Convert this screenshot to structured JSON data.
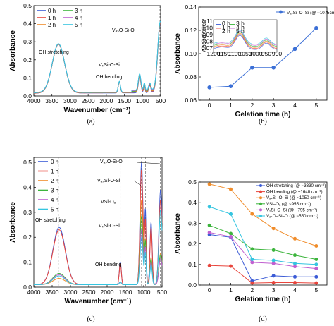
{
  "captions": [
    "(a)",
    "(b)",
    "(c)",
    "(d)"
  ],
  "colors": {
    "0 h": "#3b5bd6",
    "1 h": "#e8453c",
    "2 h": "#f08c2a",
    "3 h": "#3cb43c",
    "4 h": "#c060d0",
    "5 h": "#35c5e0"
  },
  "chart_data": [
    {
      "id": "a",
      "type": "line",
      "xlabel": "Wavenumber (cm⁻¹)",
      "ylabel": "Absorbance",
      "xlim": [
        4000,
        500
      ],
      "ylim": [
        0,
        0.5
      ],
      "xticks": [
        "4000",
        "3500",
        "3000",
        "2500",
        "2000",
        "1500",
        "1000",
        "500"
      ],
      "yticks": [
        "0.0",
        "0.1",
        "0.2",
        "0.3",
        "0.4",
        "0.5"
      ],
      "legend": [
        "0 h",
        "1 h",
        "2 h",
        "3 h",
        "4 h",
        "5 h"
      ],
      "annotations": [
        "OH stretching",
        "OH bending",
        "VₛSi-O-Si",
        "VₐₛO-Si-O"
      ],
      "series": [
        {
          "name": "0 h",
          "offset": 0.0
        },
        {
          "name": "1 h",
          "offset": 0.003
        },
        {
          "name": "2 h",
          "offset": 0.006
        },
        {
          "name": "3 h",
          "offset": 0.009
        },
        {
          "name": "4 h",
          "offset": 0.012
        },
        {
          "name": "5 h",
          "offset": 0.015
        }
      ]
    },
    {
      "id": "b",
      "type": "line",
      "xlabel": "Gelation time (h)",
      "ylabel": "Absorbance",
      "xlim": [
        -0.5,
        5.5
      ],
      "ylim": [
        0.06,
        0.14
      ],
      "xticks": [
        "0",
        "1",
        "2",
        "3",
        "4",
        "5"
      ],
      "yticks": [
        "0.06",
        "0.08",
        "0.10",
        "0.12",
        "0.14"
      ],
      "x": [
        0,
        1,
        2,
        3,
        4,
        5
      ],
      "series": [
        {
          "name": "VₐₛSi–O–Si (@ ~1075cm⁻¹)",
          "values": [
            0.071,
            0.072,
            0.088,
            0.088,
            0.104,
            0.122
          ]
        }
      ],
      "inset": {
        "ylabel": "Absorbance",
        "xticks": [
          "1200",
          "1150",
          "1100",
          "1050",
          "1000",
          "950",
          "900"
        ],
        "yticks": [
          "0.11",
          "0.10",
          "0.09",
          "0.08",
          "0.07"
        ],
        "legend": [
          "0 h",
          "1 h",
          "2 h",
          "3 h",
          "4 h",
          "5 h"
        ]
      }
    },
    {
      "id": "c",
      "type": "line",
      "xlabel": "Wavenumber (cm⁻¹)",
      "ylabel": "Absorbance",
      "xlim": [
        4000,
        500
      ],
      "ylim": [
        0,
        0.52
      ],
      "xticks": [
        "4000",
        "3500",
        "3000",
        "2500",
        "2000",
        "1500",
        "1000",
        "500"
      ],
      "yticks": [
        "0.0",
        "0.1",
        "0.2",
        "0.3",
        "0.4",
        "0.5"
      ],
      "legend": [
        "0 h",
        "1 h",
        "2 h",
        "3 h",
        "4 h",
        "5 h"
      ],
      "annotations": [
        "OH stretching",
        "OH bending",
        "VₐₛO-Si-O",
        "VₐₛSi-O-Si",
        "VSi-Oₐ",
        "VₛSi-O-Si"
      ]
    },
    {
      "id": "d",
      "type": "line",
      "xlabel": "Gelation time (h)",
      "ylabel": "Absorbance",
      "xlim": [
        -0.5,
        5.5
      ],
      "ylim": [
        0,
        0.5
      ],
      "xticks": [
        "0",
        "1",
        "2",
        "3",
        "4",
        "5"
      ],
      "yticks": [
        "0.0",
        "0.1",
        "0.2",
        "0.3",
        "0.4",
        "0.5"
      ],
      "x": [
        0,
        1,
        2,
        3,
        4,
        5
      ],
      "series": [
        {
          "name": "OH stretching (@ ~3330 cm⁻¹)",
          "color": "#3b5bd6",
          "values": [
            0.245,
            0.232,
            0.02,
            0.045,
            0.04,
            0.04
          ]
        },
        {
          "name": "OH bending (@ ~1640 cm⁻¹)",
          "color": "#e8453c",
          "values": [
            0.095,
            0.092,
            0.01,
            0.012,
            0.012,
            0.01
          ]
        },
        {
          "name": "VₐₛSi–O–Si (@ ~1050 cm⁻¹)",
          "color": "#f08c2a",
          "values": [
            0.49,
            0.465,
            0.345,
            0.275,
            0.225,
            0.19
          ]
        },
        {
          "name": "VSi–Oₐ (@ ~955 cm⁻¹)",
          "color": "#3cb43c",
          "values": [
            0.29,
            0.25,
            0.175,
            0.17,
            0.145,
            0.125
          ]
        },
        {
          "name": "VₛSi–O–Si (@ ~795 cm⁻¹)",
          "color": "#c060d0",
          "values": [
            0.255,
            0.235,
            0.11,
            0.105,
            0.09,
            0.08
          ]
        },
        {
          "name": "VₐₛO–Si–O (@ ~550 cm⁻¹)",
          "color": "#35c5e0",
          "values": [
            0.38,
            0.345,
            0.125,
            0.12,
            0.105,
            0.1
          ]
        }
      ]
    }
  ]
}
